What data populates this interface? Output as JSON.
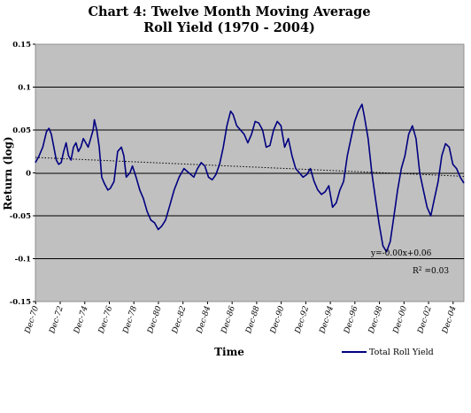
{
  "chart_data": {
    "type": "line",
    "title": "Chart 4: Twelve Month Moving Average",
    "subtitle": "Roll Yield (1970 - 2004)",
    "xlabel": "Time",
    "ylabel": "Return (log)",
    "ylim": [
      -0.15,
      0.15
    ],
    "yticks": [
      "-0.15",
      "-0.1",
      "-0.05",
      "0",
      "0.05",
      "0.1",
      "0.15"
    ],
    "xlim": [
      1970.9,
      2005.8
    ],
    "xticks": [
      "Dec-70",
      "Dec-72",
      "Dec-74",
      "Dec-76",
      "Dec-78",
      "Dec-80",
      "Dec-82",
      "Dec-84",
      "Dec-86",
      "Dec-88",
      "Dec-90",
      "Dec-92",
      "Dec-94",
      "Dec-96",
      "Dec-98",
      "Dec-00",
      "Dec-02",
      "Dec-04"
    ],
    "grid": "horizontal",
    "plot_background": "#c0c0c0",
    "legend": {
      "position": "bottom-right",
      "entries": [
        {
          "label": "Total Roll Yield",
          "color": "#000080"
        }
      ]
    },
    "trendline": {
      "equation": "y=-0.00x+0.06",
      "r_squared_label": "R",
      "r_squared_sup": "2",
      "r_squared_value": " =0.03",
      "start": [
        1970.9,
        0.018
      ],
      "end": [
        2005.8,
        -0.004
      ]
    },
    "series": [
      {
        "name": "Total Roll Yield",
        "color": "#000080",
        "x": [
          1970.9,
          1971.2,
          1971.5,
          1971.8,
          1972.0,
          1972.2,
          1972.4,
          1972.6,
          1972.8,
          1973.0,
          1973.2,
          1973.4,
          1973.6,
          1973.8,
          1974.0,
          1974.2,
          1974.4,
          1974.6,
          1974.8,
          1975.0,
          1975.2,
          1975.4,
          1975.6,
          1975.7,
          1975.9,
          1976.1,
          1976.3,
          1976.5,
          1976.8,
          1977.0,
          1977.3,
          1977.6,
          1977.9,
          1978.1,
          1978.3,
          1978.6,
          1978.8,
          1979.1,
          1979.4,
          1979.7,
          1980.0,
          1980.3,
          1980.6,
          1980.9,
          1981.2,
          1981.5,
          1981.8,
          1982.2,
          1982.6,
          1983.0,
          1983.4,
          1983.8,
          1984.1,
          1984.4,
          1984.7,
          1985.0,
          1985.3,
          1985.6,
          1985.9,
          1986.2,
          1986.5,
          1986.8,
          1987.0,
          1987.3,
          1987.6,
          1987.9,
          1988.2,
          1988.5,
          1988.8,
          1989.1,
          1989.4,
          1989.7,
          1990.0,
          1990.3,
          1990.6,
          1990.9,
          1991.2,
          1991.5,
          1991.8,
          1992.1,
          1992.4,
          1992.7,
          1993.0,
          1993.3,
          1993.6,
          1993.9,
          1994.2,
          1994.5,
          1994.8,
          1995.1,
          1995.4,
          1995.7,
          1996.0,
          1996.3,
          1996.6,
          1996.9,
          1997.2,
          1997.5,
          1997.7,
          1998.0,
          1998.3,
          1998.6,
          1998.9,
          1999.2,
          1999.5,
          1999.8,
          2000.1,
          2000.4,
          2000.7,
          2001.0,
          2001.3,
          2001.6,
          2001.9,
          2002.2,
          2002.5,
          2002.8,
          2003.1,
          2003.4,
          2003.7,
          2004.0,
          2004.3,
          2004.6,
          2004.9,
          2005.2,
          2005.5,
          2005.8
        ],
        "y": [
          0.012,
          0.02,
          0.03,
          0.048,
          0.052,
          0.045,
          0.03,
          0.015,
          0.01,
          0.012,
          0.025,
          0.035,
          0.02,
          0.015,
          0.03,
          0.035,
          0.025,
          0.03,
          0.04,
          0.035,
          0.03,
          0.04,
          0.05,
          0.062,
          0.05,
          0.03,
          -0.005,
          -0.012,
          -0.02,
          -0.018,
          -0.01,
          0.025,
          0.03,
          0.02,
          -0.005,
          0.0,
          0.008,
          -0.005,
          -0.02,
          -0.03,
          -0.045,
          -0.055,
          -0.058,
          -0.066,
          -0.062,
          -0.055,
          -0.04,
          -0.02,
          -0.005,
          0.005,
          0.0,
          -0.005,
          0.005,
          0.012,
          0.008,
          -0.005,
          -0.008,
          -0.002,
          0.01,
          0.03,
          0.055,
          0.072,
          0.068,
          0.055,
          0.05,
          0.045,
          0.035,
          0.045,
          0.06,
          0.058,
          0.05,
          0.03,
          0.032,
          0.05,
          0.06,
          0.055,
          0.03,
          0.04,
          0.02,
          0.005,
          0.0,
          -0.005,
          -0.002,
          0.005,
          -0.01,
          -0.02,
          -0.025,
          -0.022,
          -0.015,
          -0.04,
          -0.035,
          -0.02,
          -0.01,
          0.02,
          0.04,
          0.06,
          0.072,
          0.08,
          0.065,
          0.04,
          0.0,
          -0.03,
          -0.06,
          -0.085,
          -0.092,
          -0.08,
          -0.05,
          -0.02,
          0.005,
          0.02,
          0.045,
          0.055,
          0.04,
          0.0,
          -0.02,
          -0.04,
          -0.05,
          -0.03,
          -0.01,
          0.02,
          0.034,
          0.03,
          0.01,
          0.005,
          -0.005,
          -0.012
        ]
      }
    ]
  }
}
